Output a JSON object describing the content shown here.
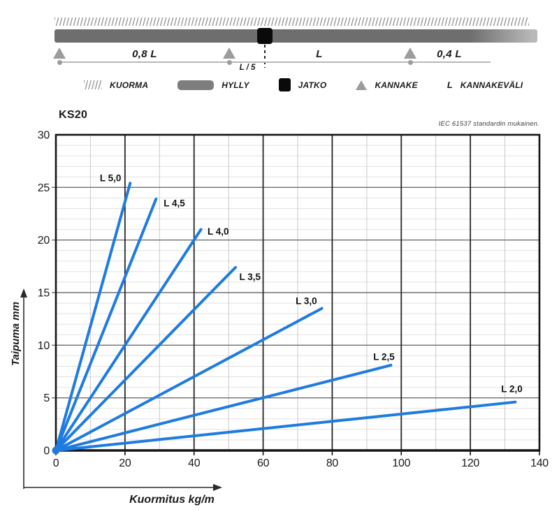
{
  "schematic": {
    "span_labels": {
      "left": "0,8 L",
      "mid": "L",
      "right": "0,4 L",
      "joint": "L / 5"
    },
    "legend": [
      {
        "label": "KUORMA"
      },
      {
        "label": "HYLLY"
      },
      {
        "label": "JATKO"
      },
      {
        "label": "KANNAKE"
      },
      {
        "symbol": "L",
        "label": "KANNAKEVÄLI"
      }
    ]
  },
  "chart": {
    "title": "KS20",
    "note": "IEC 61537 standardin mukainen."
  },
  "colors": {
    "line_blue": "#1e7be0",
    "grid_minor_h": "#e2e2e2",
    "grid_minor_v": "#c9c9c9",
    "grid_major_h": "#6e6e6e",
    "grid_major_v": "#262626",
    "border": "#141414",
    "text": "#1a1a1a",
    "shelf_gray": "#6e6e6e",
    "support_gray": "#9c9c9c"
  },
  "chart_data": {
    "type": "line",
    "title": "KS20",
    "note": "IEC 61537 standardin mukainen.",
    "xlabel": "Kuormitus kg/m",
    "ylabel": "Taipuma mm",
    "xlim": [
      0,
      140
    ],
    "ylim": [
      0,
      30
    ],
    "x_major_step": 20,
    "y_major_step": 5,
    "x_minor_step": 10,
    "y_minor_step": 1,
    "x_major_ticks": [
      0,
      20,
      40,
      60,
      80,
      100,
      120,
      140
    ],
    "y_major_ticks": [
      0,
      5,
      10,
      15,
      20,
      25,
      30
    ],
    "grid": true,
    "legend_position": "inline-labels",
    "series": [
      {
        "name": "L 5,0",
        "points": [
          [
            0,
            0
          ],
          [
            21.5,
            25.4
          ]
        ],
        "label_at": [
          15.8,
          25.9
        ]
      },
      {
        "name": "L 4,5",
        "points": [
          [
            0,
            0
          ],
          [
            29,
            23.9
          ]
        ],
        "label_at": [
          34.3,
          23.5
        ]
      },
      {
        "name": "L 4,0",
        "points": [
          [
            0,
            0
          ],
          [
            42,
            21.0
          ]
        ],
        "label_at": [
          47.0,
          20.8
        ]
      },
      {
        "name": "L 3,5",
        "points": [
          [
            0,
            0
          ],
          [
            52,
            17.4
          ]
        ],
        "label_at": [
          56.2,
          16.5
        ]
      },
      {
        "name": "L 3,0",
        "points": [
          [
            0,
            0
          ],
          [
            77,
            13.5
          ]
        ],
        "label_at": [
          72.5,
          14.2
        ]
      },
      {
        "name": "L 2,5",
        "points": [
          [
            0,
            0
          ],
          [
            97,
            8.1
          ]
        ],
        "label_at": [
          95.0,
          8.9
        ]
      },
      {
        "name": "L 2,0",
        "points": [
          [
            0,
            0
          ],
          [
            133,
            4.6
          ]
        ],
        "label_at": [
          132.0,
          5.85
        ]
      }
    ]
  }
}
